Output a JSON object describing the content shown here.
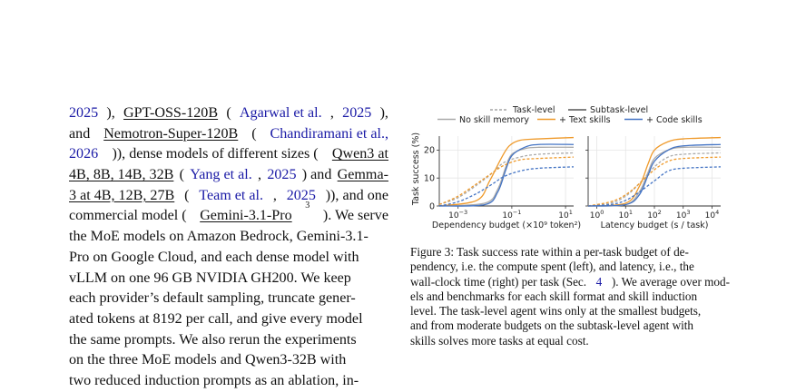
{
  "body_lines": [
    [
      {
        "t": "2025",
        "c": 1
      },
      {
        "t": "), "
      },
      {
        "t": "GPT-OSS-120B",
        "u": 1
      },
      {
        "t": " ("
      },
      {
        "t": "Agarwal et al.",
        "c": 1
      },
      {
        "t": ", "
      },
      {
        "t": "2025",
        "c": 1
      },
      {
        "t": "),"
      }
    ],
    [
      {
        "t": "and "
      },
      {
        "t": "Nemotron-Super-120B",
        "u": 1
      },
      {
        "t": " ("
      },
      {
        "t": "Chandiramani et al.,",
        "c": 1
      }
    ],
    [
      {
        "t": "2026",
        "c": 1
      },
      {
        "t": ")), dense models of different sizes ("
      },
      {
        "t": "Qwen3 at",
        "u": 1
      }
    ],
    [
      {
        "t": "4B, 8B, 14B, 32B",
        "u": 1
      },
      {
        "t": " ("
      },
      {
        "t": "Yang et al.",
        "c": 1
      },
      {
        "t": ", "
      },
      {
        "t": "2025",
        "c": 1
      },
      {
        "t": ") and "
      },
      {
        "t": "Gemma-",
        "u": 1
      }
    ],
    [
      {
        "t": "3 at 4B, 12B, 27B",
        "u": 1
      },
      {
        "t": " ("
      },
      {
        "t": "Team et al.",
        "c": 1
      },
      {
        "t": ", "
      },
      {
        "t": "2025",
        "c": 1
      },
      {
        "t": ")), and one"
      }
    ],
    [
      {
        "t": "commercial model ("
      },
      {
        "t": "Gemini-3.1-Pro",
        "u": 1
      },
      {
        "t": "3",
        "sup": 1
      },
      {
        "t": "). We serve"
      }
    ],
    [
      {
        "t": "the MoE models on Amazon Bedrock, Gemini-3.1-"
      }
    ],
    [
      {
        "t": "Pro on Google Cloud, and each dense model with"
      }
    ],
    [
      {
        "t": "vLLM on one 96 GB NVIDIA GH200. We keep"
      }
    ],
    [
      {
        "t": "each provider’s default sampling, truncate gener-"
      }
    ],
    [
      {
        "t": "ated tokens at 8192 per call, and give every model"
      }
    ],
    [
      {
        "t": "the same prompts. We also rerun the experiments"
      }
    ],
    [
      {
        "t": "on the three MoE models and Qwen3-32B with"
      }
    ],
    [
      {
        "t": "two reduced induction prompts as an ablation, in-"
      }
    ]
  ],
  "caption_lines": [
    [
      {
        "t": "Figure 3: Task success rate within a per-task budget of de-"
      }
    ],
    [
      {
        "t": "pendency, i.e. the compute spent (left), and latency, i.e., the"
      }
    ],
    [
      {
        "t": "wall-clock time (right) per task (Sec. "
      },
      {
        "t": "4",
        "c": 1
      },
      {
        "t": "). We average over mod-"
      }
    ],
    [
      {
        "t": "els and benchmarks for each skill format and skill induction"
      }
    ],
    [
      {
        "t": "level. The task-level agent wins only at the smallest budgets,"
      }
    ],
    [
      {
        "t": "and from moderate budgets on the subtask-level agent with"
      }
    ],
    [
      {
        "t": "skills solves more tasks at equal cost."
      }
    ]
  ],
  "chart_data": {
    "type": "line",
    "legend": {
      "placement": "top",
      "line_styles": [
        {
          "name": "Task-level",
          "dash": "dashed"
        },
        {
          "name": "Subtask-level",
          "dash": "solid"
        }
      ],
      "colors": [
        {
          "name": "No skill memory",
          "color": "#aaaaaa"
        },
        {
          "name": "+ Text skills",
          "color": "#ef9a2b"
        },
        {
          "name": "+ Code skills",
          "color": "#4474c4"
        }
      ]
    },
    "ylabel": "Task success (%)",
    "ylim": [
      0,
      25
    ],
    "yticks": [
      "0",
      "10",
      "20"
    ],
    "grid": true,
    "panels": [
      {
        "xlabel": "Dependency budget (×10⁹ token²)",
        "xscale": "log",
        "xlim": [
          0.0002,
          20
        ],
        "xticks": [
          {
            "base": "10",
            "exp": "−3",
            "v": 0.001
          },
          {
            "base": "10",
            "exp": "−1",
            "v": 0.1
          },
          {
            "base": "10",
            "exp": "1",
            "v": 10
          }
        ],
        "series": [
          {
            "name": "No skill memory",
            "style": "Task-level",
            "x": [
              0.0002,
              0.001,
              0.005,
              0.02,
              0.05,
              0.2,
              1,
              20
            ],
            "y": [
              0.5,
              3,
              7.5,
              12,
              15.5,
              17.5,
              18.5,
              19
            ]
          },
          {
            "name": "No skill memory",
            "style": "Subtask-level",
            "x": [
              0.0002,
              0.01,
              0.03,
              0.06,
              0.1,
              0.3,
              1,
              20
            ],
            "y": [
              0,
              1,
              6,
              14,
              18.5,
              20.5,
              21,
              21
            ]
          },
          {
            "name": "+ Text skills",
            "style": "Task-level",
            "x": [
              0.0002,
              0.001,
              0.005,
              0.02,
              0.05,
              0.2,
              1,
              20
            ],
            "y": [
              0.5,
              3.5,
              8,
              12,
              14.5,
              16.5,
              17,
              17.5
            ]
          },
          {
            "name": "+ Text skills",
            "style": "Subtask-level",
            "x": [
              0.0002,
              0.005,
              0.015,
              0.04,
              0.08,
              0.2,
              1,
              20
            ],
            "y": [
              0,
              2,
              9,
              17,
              21.5,
              23.5,
              24,
              24.5
            ]
          },
          {
            "name": "+ Code skills",
            "style": "Task-level",
            "x": [
              0.0002,
              0.001,
              0.005,
              0.02,
              0.05,
              0.2,
              1,
              20
            ],
            "y": [
              0,
              1.5,
              4.5,
              8,
              10.5,
              12.5,
              13.5,
              14
            ]
          },
          {
            "name": "+ Code skills",
            "style": "Subtask-level",
            "x": [
              0.0002,
              0.01,
              0.03,
              0.06,
              0.1,
              0.3,
              1,
              20
            ],
            "y": [
              0,
              0.5,
              5,
              13,
              18,
              21,
              22,
              22
            ]
          }
        ]
      },
      {
        "xlabel": "Latency budget (s / task)",
        "xscale": "log",
        "xlim": [
          0.5,
          20000
        ],
        "xticks": [
          {
            "base": "10",
            "exp": "0",
            "v": 1
          },
          {
            "base": "10",
            "exp": "1",
            "v": 10
          },
          {
            "base": "10",
            "exp": "2",
            "v": 100
          },
          {
            "base": "10",
            "exp": "3",
            "v": 1000
          },
          {
            "base": "10",
            "exp": "4",
            "v": 10000
          }
        ],
        "series": [
          {
            "name": "No skill memory",
            "style": "Task-level",
            "x": [
              0.5,
              3,
              10,
              30,
              100,
              300,
              1000,
              20000
            ],
            "y": [
              0,
              1,
              3.5,
              8,
              14,
              17.5,
              18.5,
              19
            ]
          },
          {
            "name": "No skill memory",
            "style": "Subtask-level",
            "x": [
              0.5,
              10,
              30,
              60,
              100,
              300,
              1000,
              20000
            ],
            "y": [
              0,
              0.5,
              5,
              12,
              17,
              20,
              21,
              21
            ]
          },
          {
            "name": "+ Text skills",
            "style": "Task-level",
            "x": [
              0.5,
              3,
              10,
              30,
              100,
              300,
              1000,
              20000
            ],
            "y": [
              0,
              1.5,
              4,
              8,
              13,
              16,
              17,
              17.5
            ]
          },
          {
            "name": "+ Text skills",
            "style": "Subtask-level",
            "x": [
              0.5,
              10,
              30,
              60,
              100,
              300,
              1000,
              20000
            ],
            "y": [
              0,
              1,
              7,
              15,
              20,
              23,
              24,
              24.5
            ]
          },
          {
            "name": "+ Code skills",
            "style": "Task-level",
            "x": [
              0.5,
              3,
              10,
              30,
              100,
              300,
              1000,
              20000
            ],
            "y": [
              0,
              0.5,
              2,
              5,
              9,
              12.5,
              13.5,
              14
            ]
          },
          {
            "name": "+ Code skills",
            "style": "Subtask-level",
            "x": [
              0.5,
              10,
              30,
              60,
              100,
              300,
              1000,
              20000
            ],
            "y": [
              0,
              0.5,
              4,
              11,
              16,
              20,
              21.5,
              22
            ]
          }
        ]
      }
    ]
  }
}
